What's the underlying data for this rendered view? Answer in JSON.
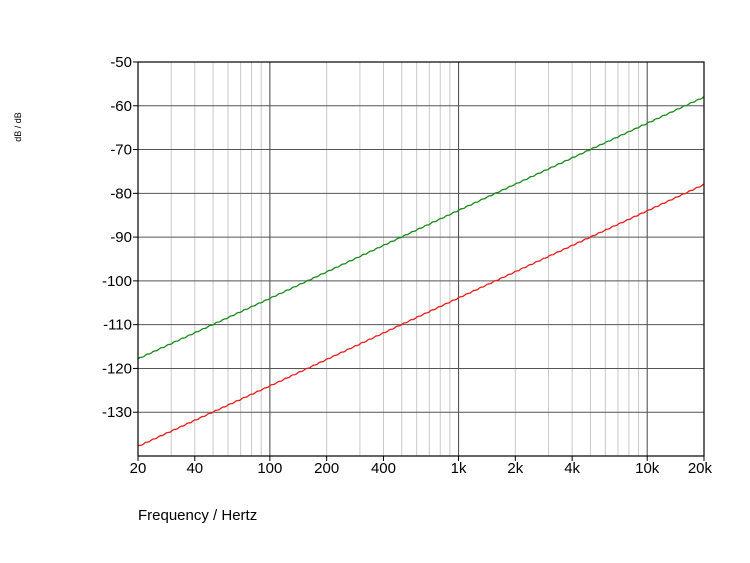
{
  "chart_data": {
    "type": "line",
    "xlabel": "Frequency / Hertz",
    "ylabel": "dB / dB",
    "xscale": "log",
    "xlim": [
      20,
      20000
    ],
    "ylim": [
      -140,
      -50
    ],
    "grid": true,
    "x_ticks": [
      {
        "value": 20,
        "label": "20"
      },
      {
        "value": 40,
        "label": "40"
      },
      {
        "value": 100,
        "label": "100"
      },
      {
        "value": 200,
        "label": "200"
      },
      {
        "value": 400,
        "label": "400"
      },
      {
        "value": 1000,
        "label": "1k"
      },
      {
        "value": 2000,
        "label": "2k"
      },
      {
        "value": 4000,
        "label": "4k"
      },
      {
        "value": 10000,
        "label": "10k"
      },
      {
        "value": 20000,
        "label": "20k"
      }
    ],
    "y_ticks": [
      -50,
      -60,
      -70,
      -80,
      -90,
      -100,
      -110,
      -120,
      -130
    ],
    "series": [
      {
        "color": "#1a8a1a",
        "x": [
          20,
          100,
          1000,
          10000,
          20000
        ],
        "y": [
          -117.8,
          -104,
          -83.9,
          -64,
          -58
        ]
      },
      {
        "color": "#e81c1c",
        "x": [
          20,
          100,
          1000,
          10000,
          20000
        ],
        "y": [
          -137.8,
          -124,
          -103.9,
          -84,
          -78
        ]
      }
    ]
  }
}
